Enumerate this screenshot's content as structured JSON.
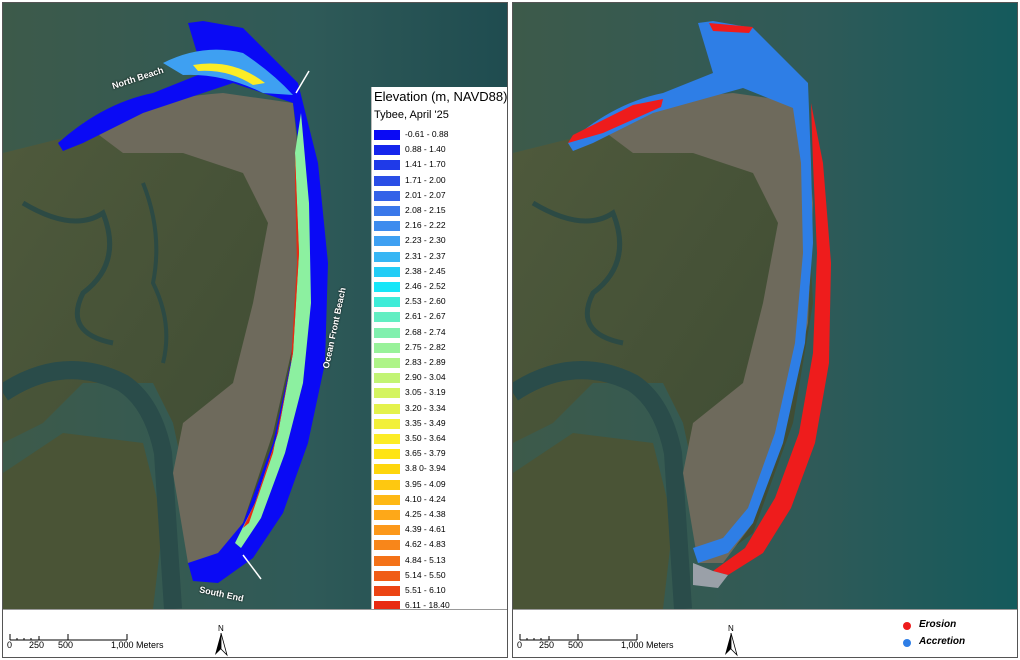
{
  "left_map": {
    "labels": {
      "north_beach": "North Beach",
      "ocean_front_beach": "Ocean Front Beach",
      "south_end": "South End"
    },
    "legend": {
      "title": "Elevation (m, NAVD88)",
      "subtitle": "Tybee, April '25",
      "classes": [
        {
          "label": "-0.61 - 0.88",
          "color": "#0a0af5"
        },
        {
          "label": "0.88 - 1.40",
          "color": "#1526ec"
        },
        {
          "label": "1.41 - 1.70",
          "color": "#1f3ae8"
        },
        {
          "label": "1.71 - 2.00",
          "color": "#2a4ee6"
        },
        {
          "label": "2.01 - 2.07",
          "color": "#3462e8"
        },
        {
          "label": "2.08 - 2.15",
          "color": "#3a78ea"
        },
        {
          "label": "2.16 - 2.22",
          "color": "#3e8cee"
        },
        {
          "label": "2.23 - 2.30",
          "color": "#3ea0f2"
        },
        {
          "label": "2.31 - 2.37",
          "color": "#36b6f4"
        },
        {
          "label": "2.38 - 2.45",
          "color": "#22cdf6"
        },
        {
          "label": "2.46 - 2.52",
          "color": "#16e6f8"
        },
        {
          "label": "2.53 - 2.60",
          "color": "#3eecd8"
        },
        {
          "label": "2.61 - 2.67",
          "color": "#62eec2"
        },
        {
          "label": "2.68 - 2.74",
          "color": "#80f0ae"
        },
        {
          "label": "2.75 - 2.82",
          "color": "#98f29a"
        },
        {
          "label": "2.83 - 2.89",
          "color": "#aef488"
        },
        {
          "label": "2.90 - 3.04",
          "color": "#c2f474"
        },
        {
          "label": "3.05 - 3.19",
          "color": "#d4f460"
        },
        {
          "label": "3.20 - 3.34",
          "color": "#e4f24c"
        },
        {
          "label": "3.35 - 3.49",
          "color": "#f2f03a"
        },
        {
          "label": "3.50 - 3.64",
          "color": "#fcec26"
        },
        {
          "label": "3.65 - 3.79",
          "color": "#fee414"
        },
        {
          "label": "3.8 0- 3.94",
          "color": "#fed60c"
        },
        {
          "label": "3.95 - 4.09",
          "color": "#fec810"
        },
        {
          "label": "4.10 - 4.24",
          "color": "#feb814"
        },
        {
          "label": "4.25 - 4.38",
          "color": "#fea818"
        },
        {
          "label": "4.39 - 4.61",
          "color": "#fc981a"
        },
        {
          "label": "4.62 - 4.83",
          "color": "#f8861a"
        },
        {
          "label": "4.84 - 5.13",
          "color": "#f47218"
        },
        {
          "label": "5.14 - 5.50",
          "color": "#f05c16"
        },
        {
          "label": "5.51 - 6.10",
          "color": "#ec4414"
        },
        {
          "label": "6.11 - 18.40",
          "color": "#e82a12"
        }
      ]
    }
  },
  "right_map": {
    "legend": {
      "erosion_label": "Erosion",
      "erosion_color": "#ee1c1c",
      "accretion_label": "Accretion",
      "accretion_color": "#2e7ee6"
    }
  },
  "scalebar": {
    "labels": [
      "0",
      "250",
      "500",
      "1,000 Meters"
    ]
  },
  "north_arrow": {
    "label": "N",
    "icon": "north-arrow-icon"
  }
}
